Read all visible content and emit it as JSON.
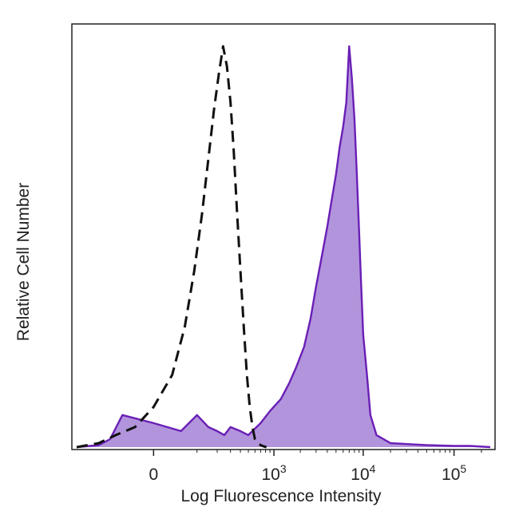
{
  "chart_data": {
    "type": "area",
    "xlabel": "Log Fluorescence Intensity",
    "ylabel": "Relative Cell Number",
    "x_scale": "biexponential",
    "x_ticks": [
      {
        "value": 0,
        "base": "0",
        "exp": ""
      },
      {
        "value": 1000,
        "base": "10",
        "exp": "3"
      },
      {
        "value": 10000,
        "base": "10",
        "exp": "4"
      },
      {
        "value": 100000,
        "base": "10",
        "exp": "5"
      }
    ],
    "xlim": [
      -300,
      250000
    ],
    "ylim": [
      0,
      100
    ],
    "grid": false,
    "series": [
      {
        "style": "dashed-outline",
        "color": "#111111",
        "x": [
          -300,
          -150,
          -80,
          -30,
          0,
          30,
          60,
          90,
          120,
          150,
          180,
          210,
          240,
          270,
          300,
          330,
          360,
          400,
          440,
          480,
          520,
          560,
          600,
          650,
          700,
          760,
          820
        ],
        "y": [
          0,
          1,
          3,
          5,
          10,
          18,
          30,
          44,
          58,
          72,
          84,
          93,
          100,
          95,
          86,
          74,
          60,
          44,
          30,
          18,
          10,
          5,
          2,
          1,
          0.5,
          0.2,
          0
        ]
      },
      {
        "style": "filled",
        "color": "#6a1fb5",
        "fill": "#b294dc",
        "x": [
          -300,
          -150,
          -100,
          -60,
          0,
          50,
          100,
          150,
          200,
          250,
          300,
          400,
          500,
          700,
          900,
          1200,
          1500,
          1800,
          2200,
          2600,
          3000,
          3500,
          4000,
          4500,
          5000,
          5500,
          6000,
          6500,
          7000,
          7500,
          8000,
          8500,
          9000,
          9500,
          10000,
          11000,
          12000,
          14000,
          20000,
          50000,
          100000,
          150000,
          250000
        ],
        "y": [
          0,
          0.5,
          2,
          8,
          6,
          4,
          8,
          5,
          4,
          3,
          5,
          4,
          3,
          6,
          9,
          12,
          16,
          20,
          25,
          32,
          40,
          48,
          55,
          62,
          68,
          75,
          80,
          86,
          100,
          92,
          82,
          68,
          54,
          40,
          28,
          18,
          8,
          3,
          1,
          0.5,
          0.3,
          0.3,
          0
        ]
      }
    ]
  }
}
